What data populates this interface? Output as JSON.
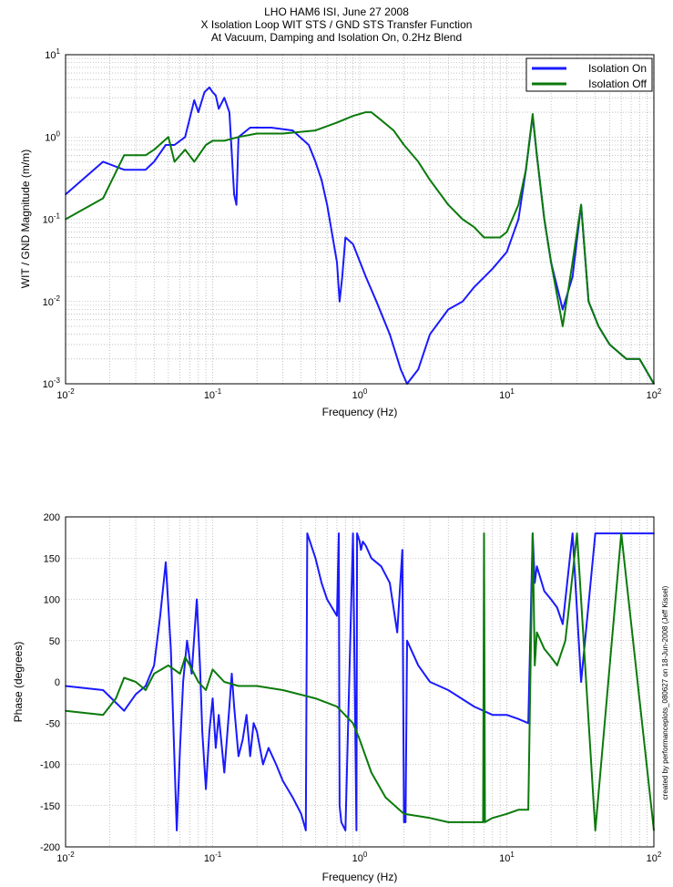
{
  "title_lines": [
    "LHO HAM6 ISI, June 27 2008",
    "X Isolation Loop WIT STS / GND STS Transfer Function",
    "At Vacuum, Damping and Isolation On, 0.2Hz Blend"
  ],
  "side_note": "created by performanceplots_080627 on 18-Jun-2008 (Jeff Kissel)",
  "colors": {
    "isolation_on": "#1a1aff",
    "isolation_off": "#0b7a0b",
    "grid": "#9a9a9a"
  },
  "chart_data": [
    {
      "type": "line",
      "log_x": true,
      "log_y": true,
      "xlabel": "Frequency (Hz)",
      "ylabel": "WIT / GND Magnitude (m/m)",
      "xlim": [
        0.01,
        100
      ],
      "ylim": [
        0.001,
        10
      ],
      "x_tick_labels": [
        "10-2",
        "10-1",
        "100",
        "101",
        "102"
      ],
      "y_tick_labels": [
        "10-3",
        "10-2",
        "10-1",
        "100",
        "101"
      ],
      "grid": true,
      "legend_position": "top-right",
      "series": [
        {
          "name": "Isolation On",
          "x": [
            0.01,
            0.018,
            0.025,
            0.035,
            0.04,
            0.048,
            0.055,
            0.065,
            0.075,
            0.08,
            0.088,
            0.095,
            0.1,
            0.105,
            0.11,
            0.12,
            0.13,
            0.14,
            0.145,
            0.15,
            0.18,
            0.25,
            0.35,
            0.45,
            0.5,
            0.55,
            0.6,
            0.7,
            0.73,
            0.76,
            0.8,
            0.9,
            1.1,
            1.3,
            1.6,
            1.9,
            2.1,
            2.5,
            3.0,
            4.0,
            5.0,
            6.0,
            8.0,
            10.0,
            12.0,
            13.5,
            15.0,
            16.0,
            18.0,
            20.0,
            24.0,
            28.0,
            32.0,
            36.0,
            42.0,
            50.0,
            65.0,
            80.0,
            100.0
          ],
          "y": [
            0.2,
            0.5,
            0.4,
            0.4,
            0.5,
            0.8,
            0.8,
            1.0,
            2.8,
            2.0,
            3.5,
            4.0,
            3.5,
            3.2,
            2.2,
            3.0,
            2.0,
            0.2,
            0.15,
            1.0,
            1.3,
            1.3,
            1.2,
            0.8,
            0.5,
            0.3,
            0.15,
            0.03,
            0.01,
            0.02,
            0.06,
            0.05,
            0.02,
            0.01,
            0.004,
            0.0015,
            0.001,
            0.0015,
            0.004,
            0.008,
            0.01,
            0.015,
            0.025,
            0.04,
            0.1,
            0.4,
            1.8,
            0.6,
            0.1,
            0.03,
            0.008,
            0.02,
            0.15,
            0.01,
            0.005,
            0.003,
            0.002,
            0.002,
            0.001
          ]
        },
        {
          "name": "Isolation Off",
          "x": [
            0.01,
            0.018,
            0.025,
            0.035,
            0.04,
            0.05,
            0.055,
            0.065,
            0.075,
            0.09,
            0.1,
            0.12,
            0.15,
            0.2,
            0.3,
            0.5,
            0.7,
            0.9,
            1.1,
            1.2,
            1.4,
            1.7,
            2.0,
            2.5,
            3.0,
            4.0,
            5.0,
            6.0,
            7.0,
            8.0,
            9.0,
            10.0,
            12.0,
            13.5,
            15.0,
            16.0,
            18.0,
            20.0,
            24.0,
            28.0,
            32.0,
            36.0,
            42.0,
            50.0,
            65.0,
            80.0,
            100.0
          ],
          "y": [
            0.1,
            0.18,
            0.6,
            0.6,
            0.7,
            1.0,
            0.5,
            0.7,
            0.5,
            0.8,
            0.9,
            0.9,
            1.0,
            1.1,
            1.1,
            1.2,
            1.5,
            1.8,
            2.0,
            2.0,
            1.6,
            1.2,
            0.8,
            0.5,
            0.3,
            0.15,
            0.1,
            0.08,
            0.06,
            0.06,
            0.06,
            0.07,
            0.15,
            0.4,
            1.9,
            0.6,
            0.1,
            0.03,
            0.005,
            0.03,
            0.15,
            0.01,
            0.005,
            0.003,
            0.002,
            0.002,
            0.001
          ]
        }
      ]
    },
    {
      "type": "line",
      "log_x": true,
      "xlabel": "Frequency (Hz)",
      "ylabel": "Phase (degrees)",
      "xlim": [
        0.01,
        100
      ],
      "ylim": [
        -200,
        200
      ],
      "x_tick_labels": [
        "10-2",
        "10-1",
        "100",
        "101",
        "102"
      ],
      "y_ticks": [
        -200,
        -150,
        -100,
        -50,
        0,
        50,
        100,
        150,
        200
      ],
      "grid": true,
      "series": [
        {
          "name": "Isolation On",
          "x": [
            0.01,
            0.018,
            0.025,
            0.03,
            0.035,
            0.04,
            0.044,
            0.048,
            0.052,
            0.057,
            0.06,
            0.063,
            0.067,
            0.072,
            0.078,
            0.082,
            0.085,
            0.09,
            0.095,
            0.1,
            0.105,
            0.11,
            0.12,
            0.13,
            0.135,
            0.14,
            0.15,
            0.16,
            0.17,
            0.18,
            0.19,
            0.2,
            0.22,
            0.24,
            0.27,
            0.3,
            0.35,
            0.4,
            0.43,
            0.44,
            0.5,
            0.55,
            0.6,
            0.7,
            0.72,
            0.73,
            0.75,
            0.8,
            0.9,
            0.95,
            0.96,
            1.0,
            1.02,
            1.05,
            1.1,
            1.2,
            1.4,
            1.6,
            1.8,
            1.95,
            2.0,
            2.05,
            2.1,
            2.5,
            3.0,
            4.0,
            6.0,
            8.0,
            10.0,
            12.0,
            14.0,
            15.0,
            15.5,
            16.0,
            18.0,
            20.0,
            22.0,
            24.0,
            28.0,
            32.0,
            40.0,
            60.0,
            100.0
          ],
          "y": [
            -5,
            -10,
            -35,
            -15,
            -5,
            20,
            80,
            145,
            40,
            -180,
            -80,
            0,
            50,
            10,
            100,
            20,
            -60,
            -130,
            -60,
            -20,
            -80,
            -40,
            -110,
            -30,
            10,
            -30,
            -90,
            -70,
            -40,
            -90,
            -50,
            -60,
            -100,
            -80,
            -100,
            -120,
            -140,
            -160,
            -180,
            180,
            150,
            120,
            100,
            80,
            180,
            -150,
            -170,
            -180,
            180,
            -180,
            180,
            170,
            160,
            170,
            165,
            150,
            140,
            120,
            60,
            160,
            -170,
            -170,
            50,
            20,
            0,
            -10,
            -30,
            -40,
            -40,
            -45,
            -50,
            180,
            120,
            140,
            110,
            100,
            90,
            70,
            180,
            0,
            180,
            180,
            180
          ]
        },
        {
          "name": "Isolation Off",
          "x": [
            0.01,
            0.018,
            0.022,
            0.025,
            0.03,
            0.035,
            0.04,
            0.05,
            0.06,
            0.065,
            0.07,
            0.08,
            0.09,
            0.1,
            0.12,
            0.15,
            0.2,
            0.3,
            0.5,
            0.7,
            0.9,
            1.0,
            1.2,
            1.5,
            2.0,
            3.0,
            4.0,
            5.0,
            6.0,
            6.9,
            7.0,
            7.1,
            8.0,
            10.0,
            12.0,
            14.0,
            15.0,
            15.5,
            16.0,
            18.0,
            20.0,
            22.0,
            25.0,
            30.0,
            40.0,
            60.0,
            100.0
          ],
          "y": [
            -35,
            -40,
            -20,
            5,
            0,
            -10,
            10,
            20,
            10,
            30,
            20,
            0,
            -10,
            15,
            0,
            -5,
            -5,
            -10,
            -20,
            -30,
            -50,
            -70,
            -110,
            -140,
            -160,
            -165,
            -170,
            -170,
            -170,
            -170,
            180,
            -170,
            -165,
            -160,
            -155,
            -155,
            180,
            20,
            60,
            40,
            30,
            20,
            50,
            180,
            -180,
            180,
            -180
          ]
        }
      ]
    }
  ]
}
